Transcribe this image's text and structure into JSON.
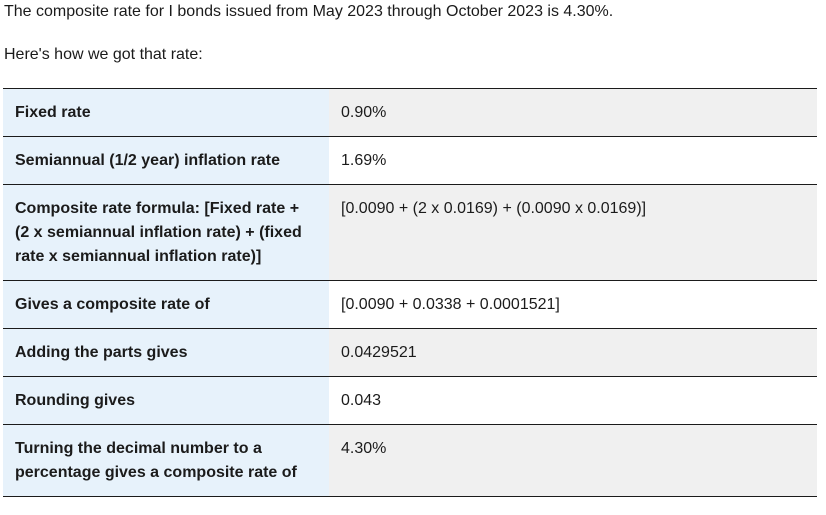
{
  "intro": {
    "line1": "The composite rate for I bonds issued from May 2023 through October 2023 is 4.30%.",
    "line2": "Here's how we got that rate:"
  },
  "table": {
    "rows": [
      {
        "label": "Fixed rate",
        "value": "0.90%"
      },
      {
        "label": "Semiannual (1/2 year) inflation rate",
        "value": "1.69%"
      },
      {
        "label": "Composite rate formula: [Fixed rate + (2 x semiannual inflation rate) + (fixed rate x semiannual inflation rate)]",
        "value": "[0.0090 + (2 x 0.0169) + (0.0090 x 0.0169)]"
      },
      {
        "label": "Gives a composite rate of",
        "value": "[0.0090 + 0.0338 + 0.0001521]"
      },
      {
        "label": "Adding the parts gives",
        "value": "0.0429521"
      },
      {
        "label": "Rounding gives",
        "value": "0.043"
      },
      {
        "label": "Turning the decimal number to a percentage gives a composite rate of",
        "value": "4.30%"
      }
    ]
  }
}
